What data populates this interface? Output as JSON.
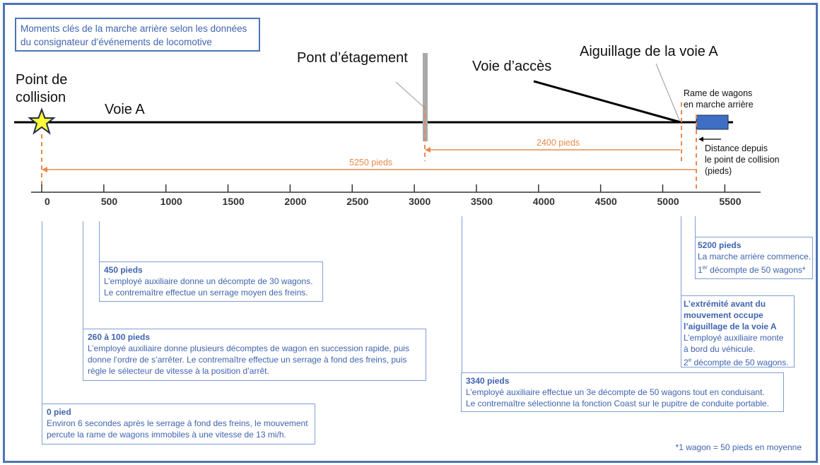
{
  "title": [
    "Moments clés de la marche arrière selon les données",
    "du consignateur d’événements de locomotive"
  ],
  "labels": {
    "collision_point": [
      "Point de",
      "collision"
    ],
    "track_a": "Voie A",
    "overpass": "Pont d’étagement",
    "access_track": "Voie d’accès",
    "switch_a": "Aiguillage de la voie A",
    "cut_of_cars": [
      "Rame de wagons",
      "en marche arrière"
    ],
    "distance_note": [
      "Distance depuis",
      "le point de collision",
      "(pieds)"
    ]
  },
  "distances": {
    "d2400": "2400 pieds",
    "d5250": "5250 pieds"
  },
  "axis": {
    "ticks": [
      "0",
      "500",
      "1000",
      "1500",
      "2000",
      "2500",
      "3000",
      "3500",
      "4000",
      "4500",
      "5000",
      "5500"
    ]
  },
  "events": [
    {
      "heading": "450 pieds",
      "lines": [
        "L’employé auxiliaire donne un décompte de 30 wagons.",
        "Le contremaître effectue un serrage moyen des freins."
      ]
    },
    {
      "heading": "260 à 100 pieds",
      "lines": [
        "L’employé auxiliaire donne plusieurs décomptes de wagon en succession rapide, puis",
        "donne l’ordre de s’arrêter. Le contremaître effectue un serrage à fond des freins, puis",
        "règle le sélecteur de vitesse à la position d’arrêt."
      ]
    },
    {
      "heading": "0 pied",
      "lines": [
        "Environ 6 secondes après le serrage à fond des freins, le mouvement",
        "percute la rame de wagons immobiles à une vitesse de 13 mi/h."
      ]
    },
    {
      "heading": "3340 pieds",
      "lines": [
        "L’employé auxiliaire effectue un 3e décompte de 50 wagons tout en conduisant.",
        "Le contremaître sélectionne la fonction Coast sur le pupitre de conduite portable."
      ]
    },
    {
      "heading": [
        "L’extrémité avant du",
        "mouvement occupe",
        "l’aiguillage de la voie A"
      ],
      "lines": [
        "L’employé auxiliaire monte",
        "à bord du véhicule."
      ],
      "count_num": "2",
      "count_sup": "e",
      "count_rest": " décompte de 50 wagons."
    },
    {
      "heading": "5200 pieds",
      "lines": [
        "La marche arrière commence."
      ],
      "count_num": "1",
      "count_sup": "er",
      "count_rest": " décompte de 50 wagons*"
    }
  ],
  "footnote": "*1 wagon = 50 pieds en moyenne",
  "colors": {
    "frame": "#4a75b5",
    "text_blue": "#3f64b0",
    "orange": "#e88a4c",
    "car_blue": "#3f6fc4",
    "star": "#ffff33"
  }
}
